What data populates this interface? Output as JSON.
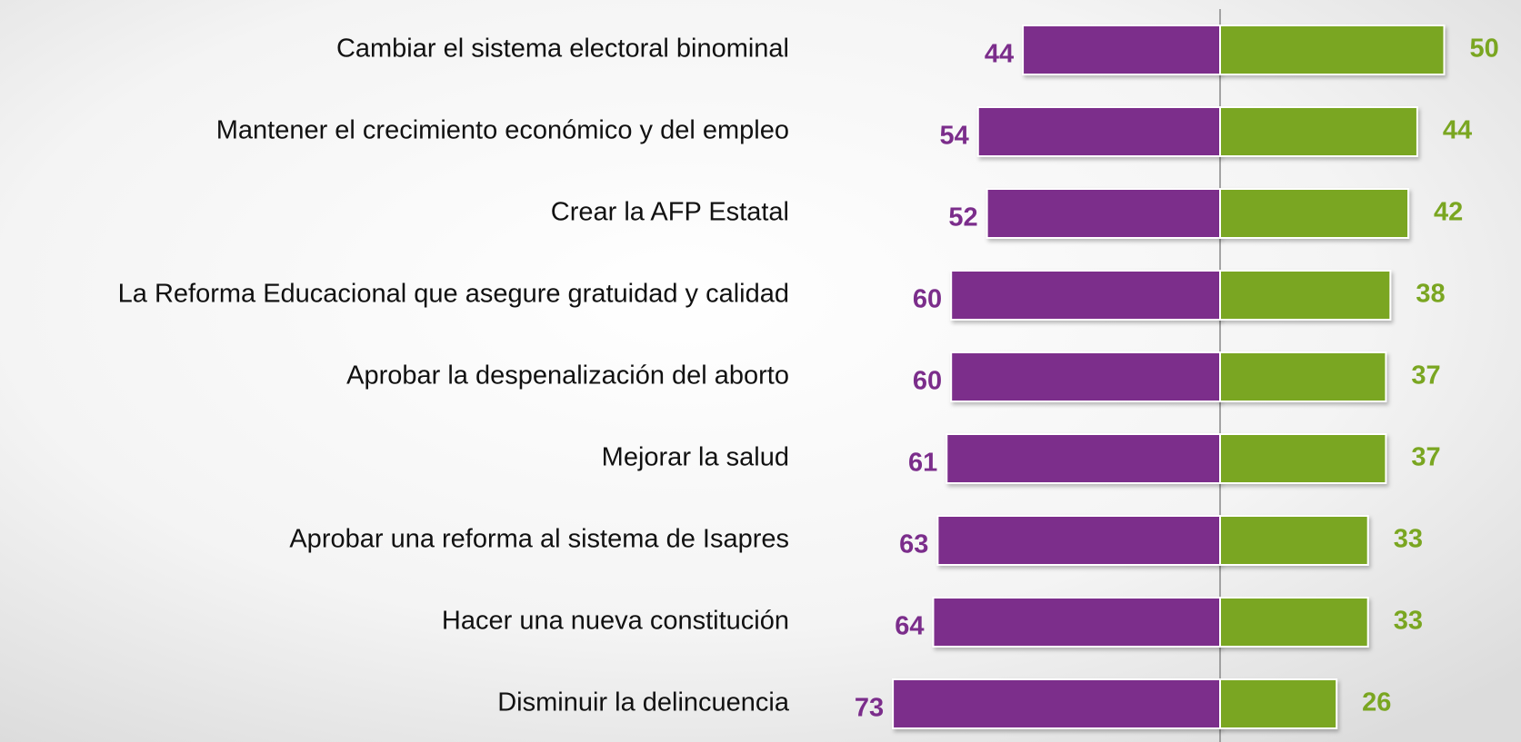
{
  "chart_data": {
    "type": "diverging-bar",
    "categories": [
      "Cambiar el sistema electoral binominal",
      "Mantener el crecimiento económico y del empleo",
      "Crear la AFP Estatal",
      "La Reforma Educacional que asegure gratuidad y calidad",
      "Aprobar la despenalización del aborto",
      "Mejorar la salud",
      "Aprobar una reforma al sistema de Isapres",
      "Hacer una nueva constitución",
      "Disminuir la delincuencia"
    ],
    "series": [
      {
        "color": "#7b2d8b",
        "side": "left",
        "values": [
          44,
          54,
          52,
          60,
          60,
          61,
          63,
          64,
          73
        ]
      },
      {
        "color": "#7aa621",
        "side": "right",
        "values": [
          50,
          44,
          42,
          38,
          37,
          37,
          33,
          33,
          26
        ]
      }
    ]
  }
}
